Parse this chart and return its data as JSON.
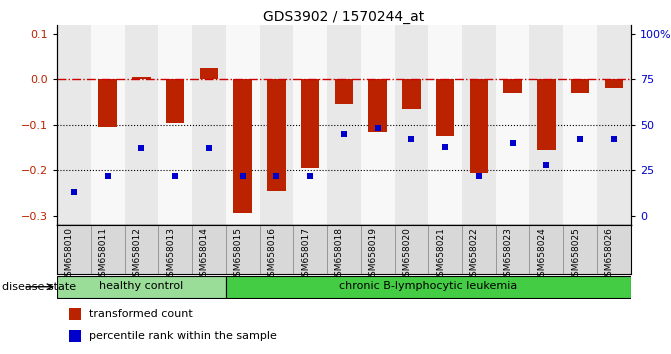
{
  "title": "GDS3902 / 1570244_at",
  "samples": [
    "GSM658010",
    "GSM658011",
    "GSM658012",
    "GSM658013",
    "GSM658014",
    "GSM658015",
    "GSM658016",
    "GSM658017",
    "GSM658018",
    "GSM658019",
    "GSM658020",
    "GSM658021",
    "GSM658022",
    "GSM658023",
    "GSM658024",
    "GSM658025",
    "GSM658026"
  ],
  "bar_values": [
    0.0,
    -0.105,
    0.005,
    -0.097,
    0.025,
    -0.295,
    -0.245,
    -0.195,
    -0.055,
    -0.115,
    -0.065,
    -0.125,
    -0.205,
    -0.03,
    -0.155,
    -0.03,
    -0.018
  ],
  "dot_values": [
    13,
    22,
    37,
    22,
    37,
    22,
    22,
    22,
    45,
    48,
    42,
    38,
    22,
    40,
    28,
    42,
    42
  ],
  "bar_color": "#bb2200",
  "dot_color": "#0000cc",
  "healthy_count": 5,
  "group1_label": "healthy control",
  "group2_label": "chronic B-lymphocytic leukemia",
  "group1_color": "#99dd99",
  "group2_color": "#44cc44",
  "disease_state_label": "disease state",
  "ylim": [
    -0.32,
    0.12
  ],
  "y_ticks_left": [
    0.1,
    0.0,
    -0.1,
    -0.2,
    -0.3
  ],
  "y_ticks_right": [
    100,
    75,
    50,
    25,
    0
  ],
  "zero_line_color": "#cc0000",
  "dotted_line_color": "#000000",
  "legend_bar_label": "transformed count",
  "legend_dot_label": "percentile rank within the sample",
  "bg_color": "#ffffff",
  "col_bg_even": "#e8e8e8",
  "col_bg_odd": "#f8f8f8"
}
